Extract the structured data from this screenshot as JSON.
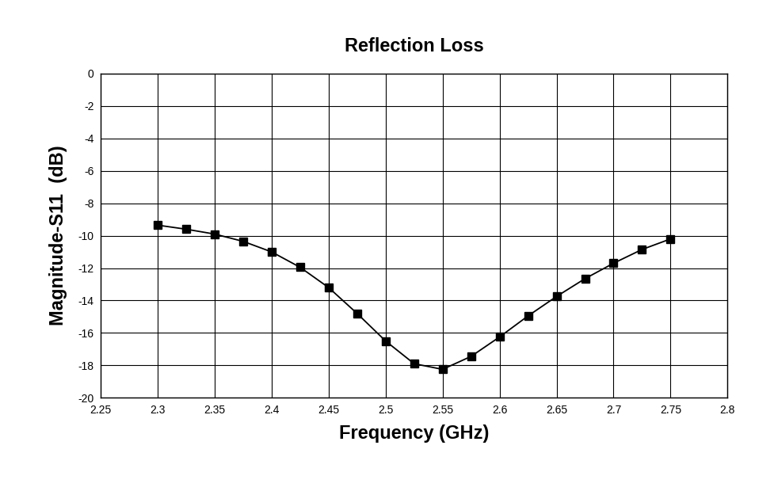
{
  "chart_data": {
    "type": "line",
    "title": "Reflection Loss",
    "x_label": "Frequency (GHz)",
    "y_label": "Magnitude-S11  (dB)",
    "x": [
      2.3,
      2.325,
      2.35,
      2.375,
      2.4,
      2.425,
      2.45,
      2.475,
      2.5,
      2.525,
      2.55,
      2.575,
      2.6,
      2.625,
      2.65,
      2.675,
      2.7,
      2.725,
      2.75
    ],
    "values": [
      -9.35,
      -9.6,
      -9.9,
      -10.35,
      -11.0,
      -11.95,
      -13.2,
      -14.8,
      -16.5,
      -17.9,
      -18.25,
      -17.45,
      -16.25,
      -14.95,
      -13.75,
      -12.65,
      -11.7,
      -10.85,
      -10.2
    ],
    "color": "#000000",
    "marker": "square",
    "line_style": "solid",
    "xlim": [
      2.25,
      2.8
    ],
    "xticks": [
      2.25,
      2.3,
      2.35,
      2.4,
      2.45,
      2.5,
      2.55,
      2.6,
      2.65,
      2.7,
      2.75,
      2.8
    ],
    "ylim": [
      -20,
      0
    ],
    "yticks": [
      -20,
      -18,
      -16,
      -14,
      -12,
      -10,
      -8,
      -6,
      -4,
      -2,
      0
    ],
    "grid": true
  }
}
